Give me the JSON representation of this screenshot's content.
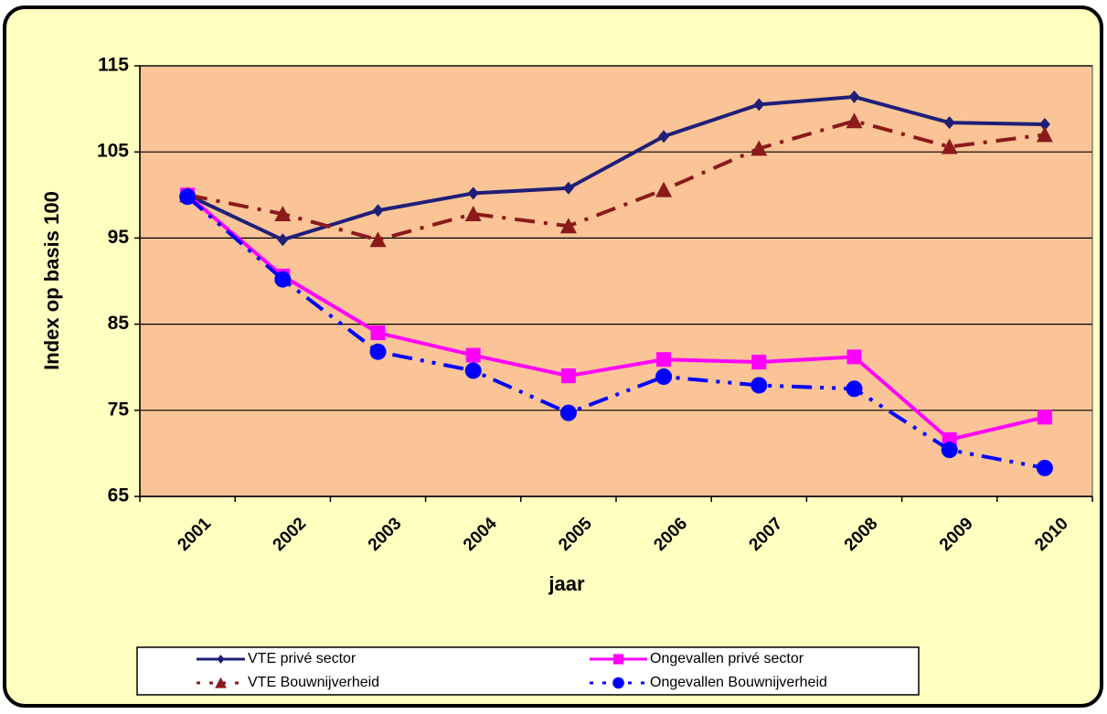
{
  "chart_data": {
    "type": "line",
    "x_label": "jaar",
    "y_label": "Index op basis 100",
    "categories": [
      "2001",
      "2002",
      "2003",
      "2004",
      "2005",
      "2006",
      "2007",
      "2008",
      "2009",
      "2010"
    ],
    "series": [
      {
        "name": "VTE privé sector",
        "color": "#1f1f78",
        "marker": "diamond",
        "dash": "solid",
        "values": [
          100,
          94.8,
          98.2,
          100.2,
          100.8,
          106.8,
          110.5,
          111.4,
          108.4,
          108.2
        ]
      },
      {
        "name": "Ongevallen privé sector",
        "color": "#ff00ff",
        "marker": "square",
        "dash": "solid",
        "values": [
          100,
          90.6,
          84.0,
          81.4,
          79.0,
          80.9,
          80.6,
          81.2,
          71.6,
          74.2
        ]
      },
      {
        "name": "VTE Bouwnijverheid",
        "color": "#8b1a1a",
        "marker": "triangle",
        "dash": "dashdot",
        "values": [
          100,
          97.8,
          94.8,
          97.8,
          96.4,
          100.6,
          105.4,
          108.6,
          105.6,
          107.0
        ]
      },
      {
        "name": "Ongevallen Bouwnijverheid",
        "color": "#0000ff",
        "marker": "circle",
        "dash": "dashdotdot",
        "values": [
          99.8,
          90.2,
          81.8,
          79.6,
          74.7,
          78.9,
          77.9,
          77.5,
          70.4,
          68.3
        ]
      }
    ],
    "ylim": [
      65,
      115
    ],
    "yticks": [
      65,
      75,
      85,
      95,
      105,
      115
    ],
    "grid": true,
    "legend": "bottom"
  }
}
